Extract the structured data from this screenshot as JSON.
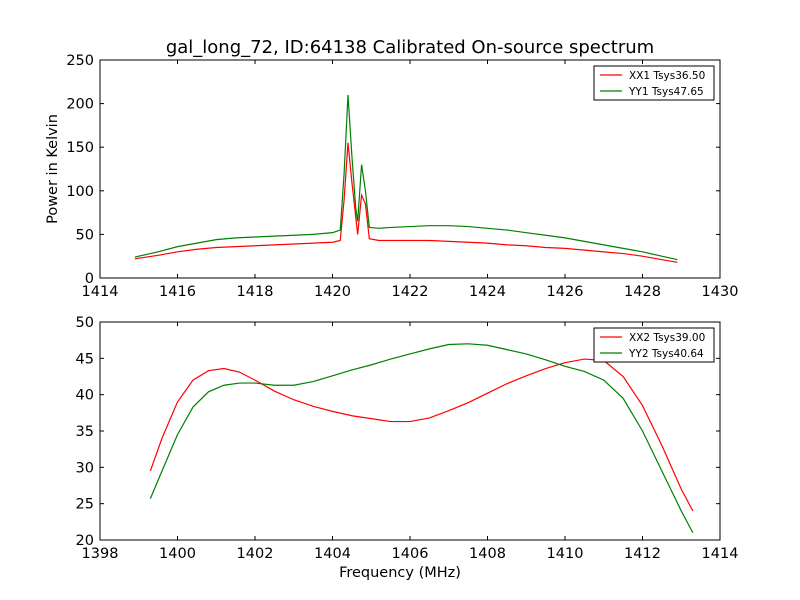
{
  "figure": {
    "title": "gal_long_72, ID:64138 Calibrated On-source spectrum"
  },
  "chart_data": [
    {
      "type": "line",
      "title": "gal_long_72, ID:64138 Calibrated On-source spectrum",
      "xlabel": "",
      "ylabel": "Power in Kelvin",
      "xlim": [
        1414,
        1430
      ],
      "ylim": [
        0,
        250
      ],
      "xticks": [
        1414,
        1416,
        1418,
        1420,
        1422,
        1424,
        1426,
        1428,
        1430
      ],
      "yticks": [
        0,
        50,
        100,
        150,
        200,
        250
      ],
      "grid": false,
      "legend_position": "top-right",
      "series": [
        {
          "name": "XX1 Tsys36.50",
          "color": "#ff0000",
          "x": [
            1414.9,
            1415.5,
            1416.0,
            1416.5,
            1417.0,
            1417.5,
            1418.0,
            1418.5,
            1419.0,
            1419.5,
            1420.0,
            1420.2,
            1420.3,
            1420.4,
            1420.5,
            1420.6,
            1420.65,
            1420.75,
            1420.85,
            1420.95,
            1421.2,
            1421.5,
            1422.0,
            1422.5,
            1423.0,
            1423.5,
            1424.0,
            1424.5,
            1425.0,
            1425.5,
            1426.0,
            1426.5,
            1427.0,
            1427.5,
            1428.0,
            1428.5,
            1428.9
          ],
          "y": [
            22,
            26,
            30,
            33,
            35,
            36,
            37,
            38,
            39,
            40,
            41,
            43,
            90,
            155,
            110,
            70,
            50,
            95,
            85,
            45,
            43,
            43,
            43,
            43,
            42,
            41,
            40,
            38,
            37,
            35,
            34,
            32,
            30,
            28,
            25,
            21,
            18
          ]
        },
        {
          "name": "YY1 Tsys47.65",
          "color": "#008000",
          "x": [
            1414.9,
            1415.5,
            1416.0,
            1416.5,
            1417.0,
            1417.5,
            1418.0,
            1418.5,
            1419.0,
            1419.5,
            1420.0,
            1420.2,
            1420.3,
            1420.4,
            1420.5,
            1420.6,
            1420.65,
            1420.75,
            1420.85,
            1420.95,
            1421.2,
            1421.5,
            1422.0,
            1422.5,
            1423.0,
            1423.5,
            1424.0,
            1424.5,
            1425.0,
            1425.5,
            1426.0,
            1426.5,
            1427.0,
            1427.5,
            1428.0,
            1428.5,
            1428.9
          ],
          "y": [
            24,
            30,
            36,
            40,
            44,
            46,
            47,
            48,
            49,
            50,
            52,
            55,
            120,
            210,
            140,
            80,
            65,
            130,
            100,
            58,
            57,
            58,
            59,
            60,
            60,
            59,
            57,
            55,
            52,
            49,
            46,
            42,
            38,
            34,
            30,
            25,
            21
          ]
        }
      ]
    },
    {
      "type": "line",
      "title": "",
      "xlabel": "Frequency (MHz)",
      "ylabel": "",
      "xlim": [
        1398,
        1414
      ],
      "ylim": [
        20,
        50
      ],
      "xticks": [
        1398,
        1400,
        1402,
        1404,
        1406,
        1408,
        1410,
        1412,
        1414
      ],
      "yticks": [
        20,
        25,
        30,
        35,
        40,
        45,
        50
      ],
      "grid": false,
      "legend_position": "top-right",
      "series": [
        {
          "name": "XX2 Tsys39.00",
          "color": "#ff0000",
          "x": [
            1399.3,
            1399.6,
            1400.0,
            1400.4,
            1400.8,
            1401.2,
            1401.6,
            1402.0,
            1402.5,
            1403.0,
            1403.5,
            1404.0,
            1404.5,
            1405.0,
            1405.5,
            1406.0,
            1406.5,
            1407.0,
            1407.5,
            1408.0,
            1408.5,
            1409.0,
            1409.5,
            1410.0,
            1410.5,
            1411.0,
            1411.5,
            1412.0,
            1412.5,
            1413.0,
            1413.3
          ],
          "y": [
            29.5,
            34,
            39,
            42,
            43.3,
            43.6,
            43.1,
            42,
            40.5,
            39.3,
            38.4,
            37.7,
            37.1,
            36.7,
            36.3,
            36.3,
            36.8,
            37.8,
            38.9,
            40.2,
            41.5,
            42.6,
            43.6,
            44.4,
            44.9,
            44.7,
            42.5,
            38.5,
            33,
            27,
            24
          ]
        },
        {
          "name": "YY2 Tsys40.64",
          "color": "#008000",
          "x": [
            1399.3,
            1399.6,
            1400.0,
            1400.4,
            1400.8,
            1401.2,
            1401.6,
            1402.0,
            1402.5,
            1403.0,
            1403.5,
            1404.0,
            1404.5,
            1405.0,
            1405.5,
            1406.0,
            1406.5,
            1407.0,
            1407.5,
            1408.0,
            1408.5,
            1409.0,
            1409.5,
            1410.0,
            1410.5,
            1411.0,
            1411.5,
            1412.0,
            1412.5,
            1413.0,
            1413.3
          ],
          "y": [
            25.7,
            29.5,
            34.5,
            38.3,
            40.4,
            41.3,
            41.6,
            41.6,
            41.3,
            41.3,
            41.8,
            42.6,
            43.4,
            44.1,
            44.9,
            45.6,
            46.3,
            46.9,
            47,
            46.8,
            46.2,
            45.6,
            44.8,
            43.9,
            43.2,
            42,
            39.5,
            35,
            29.5,
            24,
            21
          ]
        }
      ]
    }
  ]
}
